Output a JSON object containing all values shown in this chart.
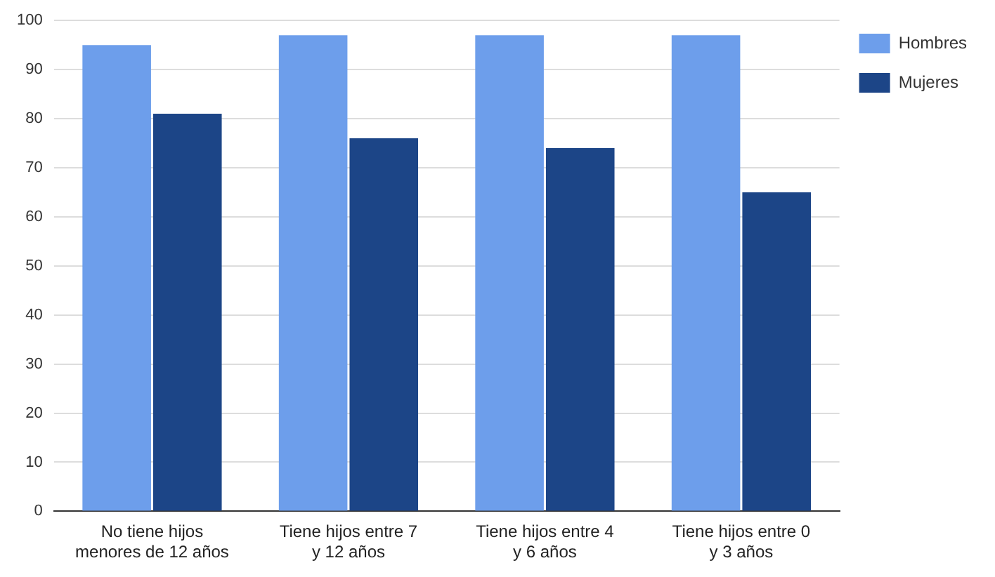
{
  "chart_data": {
    "type": "bar",
    "categories": [
      "No tiene hijos menores de 12 años",
      "Tiene hijos entre 7 y 12 años",
      "Tiene hijos entre 4 y 6 años",
      "Tiene hijos entre 0 y 3 años"
    ],
    "series": [
      {
        "name": "Hombres",
        "color": "#6d9eeb",
        "values": [
          95,
          97,
          97,
          97
        ]
      },
      {
        "name": "Mujeres",
        "color": "#1c4587",
        "values": [
          81,
          76,
          74,
          65
        ]
      }
    ],
    "ylim": [
      0,
      100
    ],
    "yticks": [
      0,
      10,
      20,
      30,
      40,
      50,
      60,
      70,
      80,
      90,
      100
    ],
    "grid": "y",
    "legend": "top right"
  }
}
